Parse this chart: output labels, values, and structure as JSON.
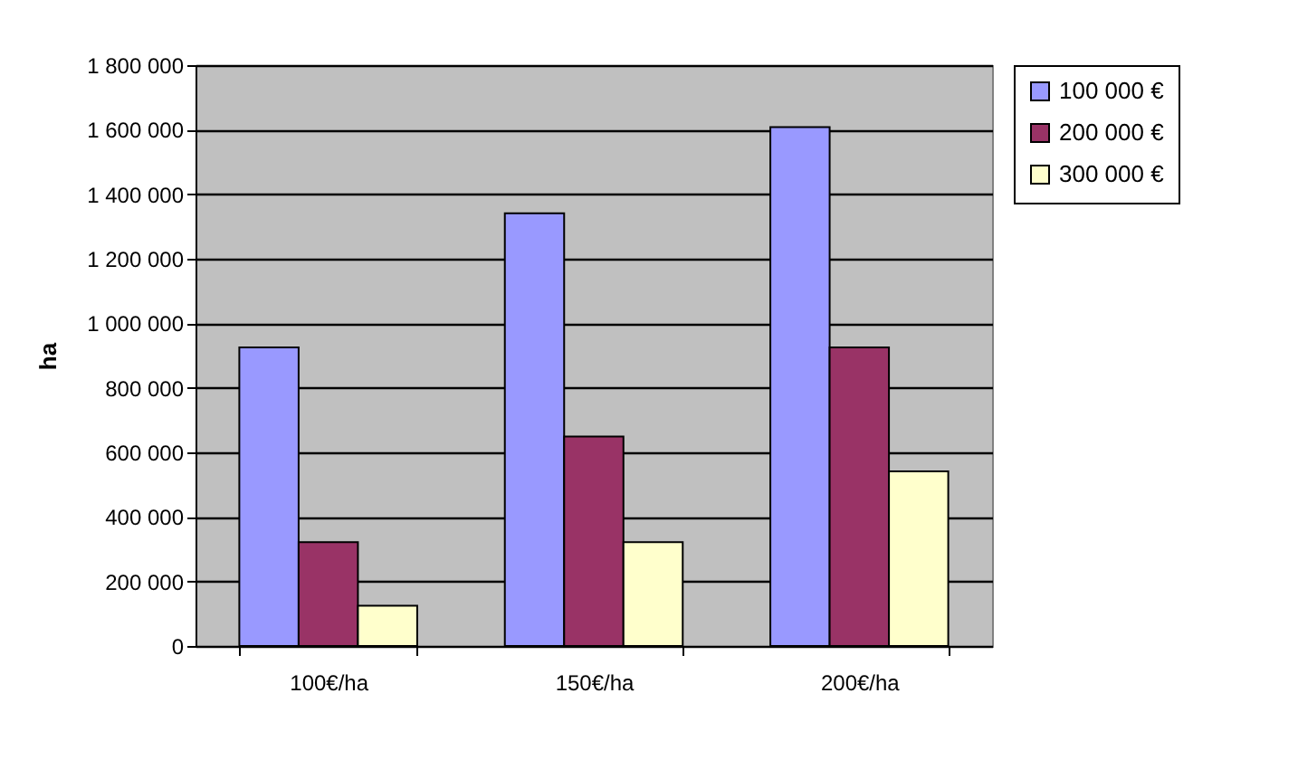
{
  "chart_data": {
    "type": "bar",
    "ylabel": "ha",
    "categories": [
      "100€/ha",
      "150€/ha",
      "200€/ha"
    ],
    "series": [
      {
        "name": "100 000 €",
        "color": "#9999ff",
        "values": [
          925000,
          1341000,
          1608000
        ]
      },
      {
        "name": "200 000 €",
        "color": "#993366",
        "values": [
          322000,
          649000,
          925000
        ]
      },
      {
        "name": "300 000 €",
        "color": "#ffffcc",
        "values": [
          125000,
          322000,
          541000
        ]
      }
    ],
    "ylim": [
      0,
      1800000
    ],
    "yticks": [
      0,
      200000,
      400000,
      600000,
      800000,
      1000000,
      1200000,
      1400000,
      1600000,
      1800000
    ],
    "grid": "y",
    "legend": "right"
  }
}
